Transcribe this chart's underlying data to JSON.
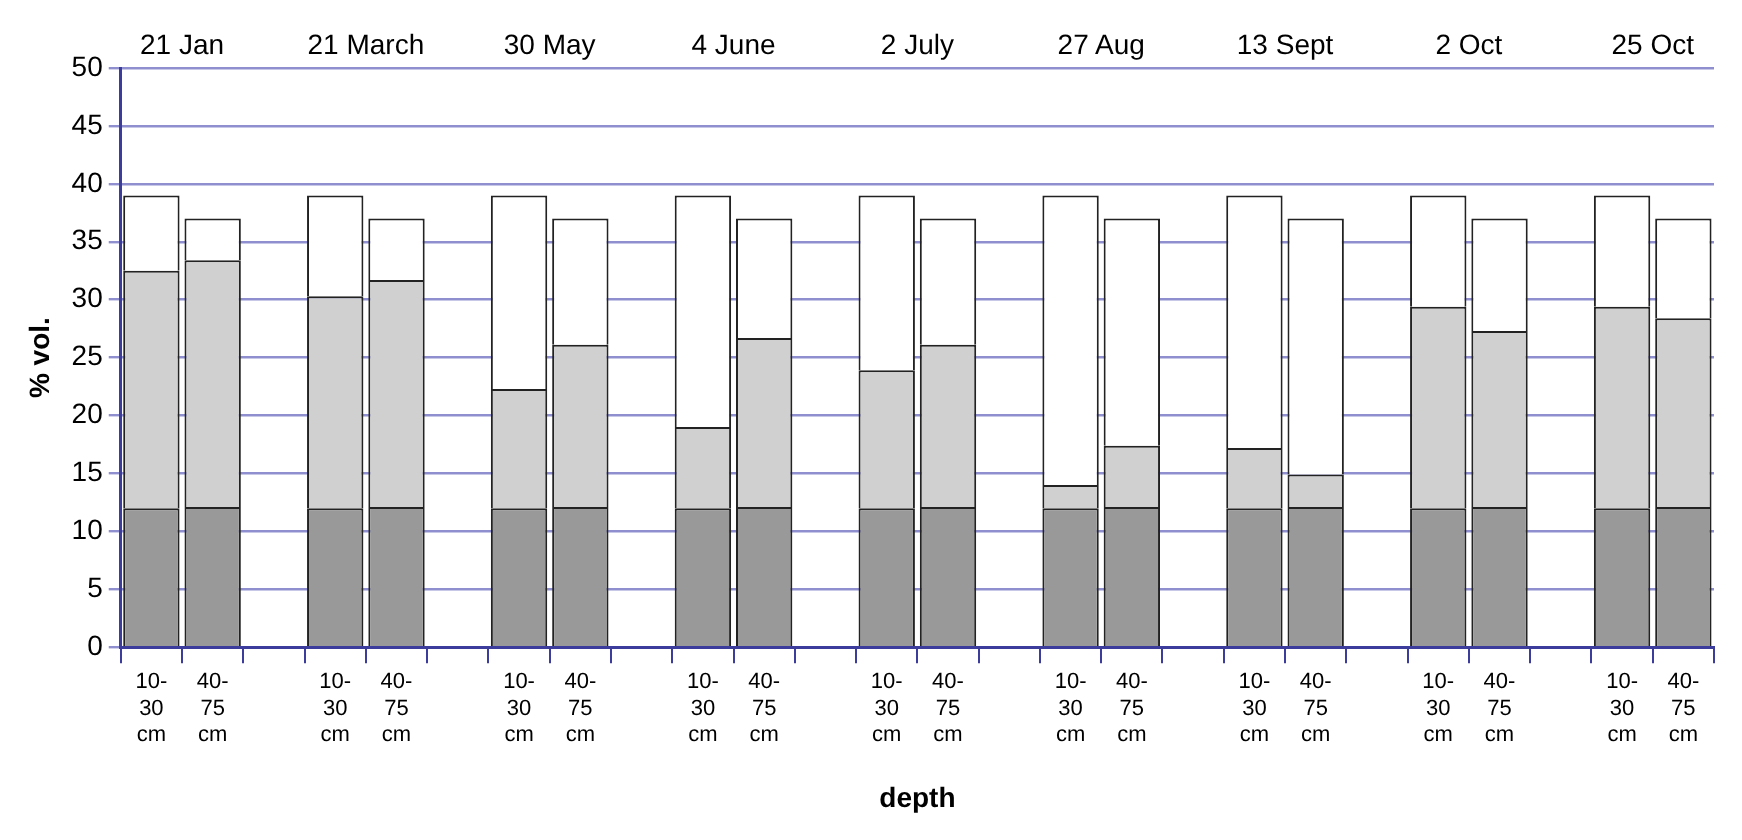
{
  "chart_data": {
    "type": "bar",
    "stacked": true,
    "xlabel": "depth",
    "ylabel": "% vol.",
    "categories": [
      "10-30 cm",
      "40-75 cm",
      null,
      "10-30 cm",
      "40-75 cm",
      null,
      "10-30 cm",
      "40-75 cm",
      null,
      "10-30 cm",
      "40-75 cm",
      null,
      "10-30 cm",
      "40-75 cm",
      null,
      "10-30 cm",
      "40-75 cm",
      null,
      "10-30 cm",
      "40-75 cm",
      null,
      "10-30 cm",
      "40-75 cm",
      null,
      "10-30 cm",
      "40-75 cm"
    ],
    "series": [
      {
        "color": "#999999",
        "values": [
          12,
          12.1,
          null,
          12,
          12.1,
          null,
          12,
          12.1,
          null,
          12,
          12.1,
          null,
          12,
          12.1,
          null,
          12,
          12.1,
          null,
          12,
          12.1,
          null,
          12,
          12.1,
          null,
          12,
          12.1
        ]
      },
      {
        "color": "#d0d0d0",
        "values": [
          20.5,
          21.3,
          null,
          18.3,
          19.6,
          null,
          10.3,
          14.0,
          null,
          7.0,
          14.6,
          null,
          11.9,
          14.0,
          null,
          2.0,
          5.3,
          null,
          5.2,
          2.8,
          null,
          17.4,
          15.2,
          null,
          17.4,
          16.3
        ]
      },
      {
        "color": "#ffffff",
        "values": [
          6.5,
          3.6,
          null,
          8.7,
          5.3,
          null,
          16.7,
          10.9,
          null,
          20.0,
          10.3,
          null,
          15.1,
          10.9,
          null,
          25.0,
          19.6,
          null,
          21.8,
          22.1,
          null,
          9.6,
          9.7,
          null,
          9.6,
          8.6
        ]
      }
    ],
    "ylim": [
      0,
      50
    ],
    "yticks": [
      0,
      5,
      10,
      15,
      20,
      25,
      30,
      35,
      40,
      45,
      50
    ],
    "grid": "y",
    "legend": false,
    "annotations": [
      "21 Jan",
      "21 March",
      "30 May",
      "4 June",
      "2 July",
      "27 Aug",
      "13 Sept",
      "2 Oct",
      "25 Oct"
    ]
  }
}
